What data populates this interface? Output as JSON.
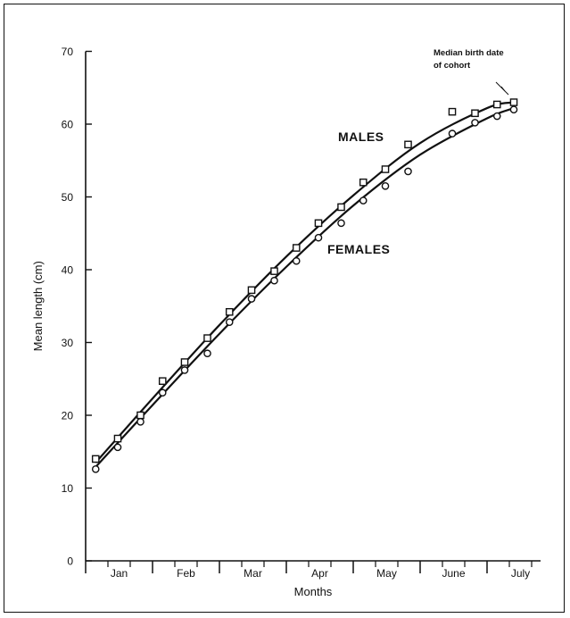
{
  "chart_data": {
    "type": "scatter",
    "xlabel": "Months",
    "ylabel": "Mean length (cm)",
    "ylim": [
      0,
      70
    ],
    "yticks": [
      0,
      10,
      20,
      30,
      40,
      50,
      60,
      70
    ],
    "xlim": [
      0,
      6.8
    ],
    "month_labels": [
      "Jan",
      "Feb",
      "Mar",
      "Apr",
      "May",
      "June",
      "July"
    ],
    "annotation": [
      "Median birth date",
      "of cohort"
    ],
    "series": [
      {
        "name": "MALES",
        "marker": "square",
        "points": [
          [
            0.15,
            14.0
          ],
          [
            0.48,
            16.8
          ],
          [
            0.82,
            20.0
          ],
          [
            1.15,
            24.7
          ],
          [
            1.48,
            27.3
          ],
          [
            1.82,
            30.6
          ],
          [
            2.15,
            34.2
          ],
          [
            2.48,
            37.2
          ],
          [
            2.82,
            39.8
          ],
          [
            3.15,
            43.0
          ],
          [
            3.48,
            46.4
          ],
          [
            3.82,
            48.6
          ],
          [
            4.15,
            52.0
          ],
          [
            4.48,
            53.8
          ],
          [
            4.82,
            57.2
          ],
          [
            5.48,
            61.7
          ],
          [
            5.82,
            61.5
          ],
          [
            6.15,
            62.7
          ],
          [
            6.4,
            63.0
          ]
        ],
        "curve": [
          [
            0.15,
            13.5
          ],
          [
            1.0,
            22.3
          ],
          [
            2.0,
            32.4
          ],
          [
            3.0,
            41.8
          ],
          [
            4.0,
            50.2
          ],
          [
            5.0,
            57.4
          ],
          [
            6.0,
            62.2
          ],
          [
            6.4,
            63.0
          ]
        ]
      },
      {
        "name": "FEMALES",
        "marker": "circle",
        "points": [
          [
            0.15,
            12.6
          ],
          [
            0.48,
            15.6
          ],
          [
            0.82,
            19.1
          ],
          [
            1.15,
            23.1
          ],
          [
            1.48,
            26.2
          ],
          [
            1.82,
            28.5
          ],
          [
            2.15,
            32.8
          ],
          [
            2.48,
            36.0
          ],
          [
            2.82,
            38.5
          ],
          [
            3.15,
            41.2
          ],
          [
            3.48,
            44.4
          ],
          [
            3.82,
            46.4
          ],
          [
            4.15,
            49.5
          ],
          [
            4.48,
            51.5
          ],
          [
            4.82,
            53.5
          ],
          [
            5.48,
            58.7
          ],
          [
            5.82,
            60.2
          ],
          [
            6.15,
            61.1
          ],
          [
            6.4,
            62.0
          ]
        ],
        "curve": [
          [
            0.15,
            12.9
          ],
          [
            1.0,
            21.4
          ],
          [
            2.0,
            31.2
          ],
          [
            3.0,
            40.4
          ],
          [
            4.0,
            48.8
          ],
          [
            5.0,
            55.8
          ],
          [
            6.0,
            60.8
          ],
          [
            6.4,
            62.2
          ]
        ]
      }
    ]
  }
}
